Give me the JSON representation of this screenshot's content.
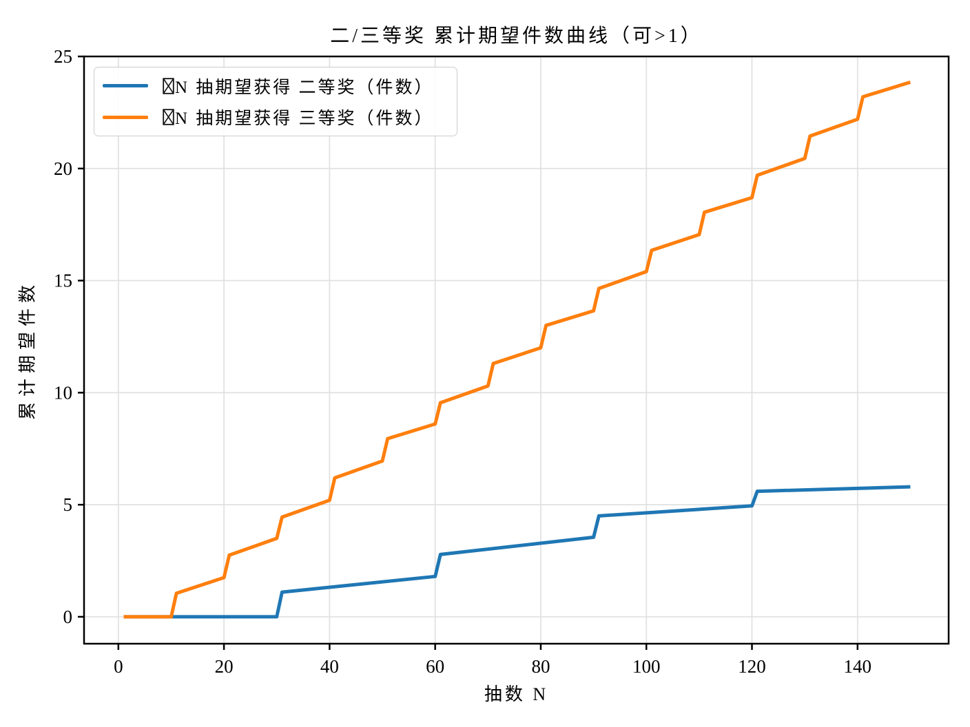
{
  "chart_data": {
    "type": "line",
    "title": "二/三等奖 累计期望件数曲线（可>1）",
    "xlabel": "抽数 N",
    "ylabel": "累计期望件数",
    "xlim": [
      -6.5,
      157.25
    ],
    "ylim": [
      -1.2,
      25.0
    ],
    "x_ticks": [
      0,
      20,
      40,
      60,
      80,
      100,
      120,
      140
    ],
    "y_ticks": [
      0,
      5,
      10,
      15,
      20,
      25
    ],
    "grid": true,
    "grid_color": "#e0e0e0",
    "spine_color": "#000000",
    "legend_position": "upper-left",
    "points_format": "piecewise-linear vertices [draw N, cumulative expected count]",
    "series": [
      {
        "id": "second-prize",
        "label": "N 抽期望获得 二等奖（件数）",
        "missing_glyph_before_label": true,
        "color": "#1f77b4",
        "points": [
          [
            1,
            0
          ],
          [
            30,
            0
          ],
          [
            31,
            1.1
          ],
          [
            60,
            1.8
          ],
          [
            61,
            2.78
          ],
          [
            90,
            3.55
          ],
          [
            91,
            4.5
          ],
          [
            120,
            4.95
          ],
          [
            121,
            5.6
          ],
          [
            150,
            5.8
          ]
        ]
      },
      {
        "id": "third-prize",
        "label": "N 抽期望获得 三等奖（件数）",
        "missing_glyph_before_label": true,
        "color": "#ff7f0e",
        "points": [
          [
            1,
            0
          ],
          [
            10,
            0
          ],
          [
            11,
            1.05
          ],
          [
            20,
            1.75
          ],
          [
            21,
            2.75
          ],
          [
            30,
            3.5
          ],
          [
            31,
            4.45
          ],
          [
            40,
            5.2
          ],
          [
            41,
            6.2
          ],
          [
            50,
            6.95
          ],
          [
            51,
            7.95
          ],
          [
            60,
            8.6
          ],
          [
            61,
            9.55
          ],
          [
            70,
            10.3
          ],
          [
            71,
            11.3
          ],
          [
            80,
            12.0
          ],
          [
            81,
            13.0
          ],
          [
            90,
            13.65
          ],
          [
            91,
            14.65
          ],
          [
            100,
            15.4
          ],
          [
            101,
            16.35
          ],
          [
            110,
            17.05
          ],
          [
            111,
            18.05
          ],
          [
            120,
            18.7
          ],
          [
            121,
            19.7
          ],
          [
            130,
            20.45
          ],
          [
            131,
            21.45
          ],
          [
            140,
            22.2
          ],
          [
            141,
            23.2
          ],
          [
            150,
            23.85
          ]
        ]
      }
    ]
  }
}
